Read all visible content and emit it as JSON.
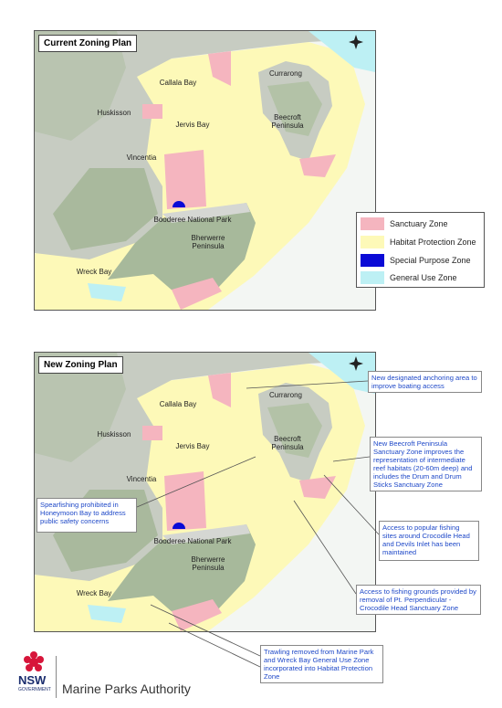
{
  "maps": [
    {
      "title": "Current Zoning Plan",
      "places": [
        "Callala Bay",
        "Currarong",
        "Huskisson",
        "Jervis Bay",
        "Beecroft Peninsula",
        "Vincentia",
        "Booderee National Park",
        "Bherwerre Peninsula",
        "Wreck Bay"
      ]
    },
    {
      "title": "New Zoning Plan",
      "places": [
        "Callala Bay",
        "Currarong",
        "Huskisson",
        "Jervis Bay",
        "Beecroft Peninsula",
        "Vincentia",
        "Booderee National Park",
        "Bherwerre Peninsula",
        "Wreck Bay"
      ],
      "callouts": [
        "New designated anchoring area to improve boating access",
        "New Beecroft Peninsula Sanctuary Zone improves the representation of intermediate reef habitats (20-60m deep) and includes the Drum and Drum Sticks Sanctuary Zone",
        "Spearfishing prohibited in Honeymoon Bay to address public safety concerns",
        "Access to popular fishing sites around Crocodile Head and Devils Inlet has been maintained",
        "Access to fishing grounds provided by removal of Pt. Perpendicular - Crocodile Head Sanctuary Zone",
        "Trawling removed from Marine Park and Wreck Bay General Use Zone incorporated into Habitat Protection Zone"
      ]
    }
  ],
  "legend": [
    {
      "label": "Sanctuary Zone",
      "color": "#f5b5bf"
    },
    {
      "label": "Habitat Protection Zone",
      "color": "#fdf9b8"
    },
    {
      "label": "Special Purpose Zone",
      "color": "#0a0ad6"
    },
    {
      "label": "General Use Zone",
      "color": "#bdf0f4"
    }
  ],
  "footer": {
    "logo": "NSW",
    "logo_sub": "GOVERNMENT",
    "org": "Marine Parks Authority"
  }
}
